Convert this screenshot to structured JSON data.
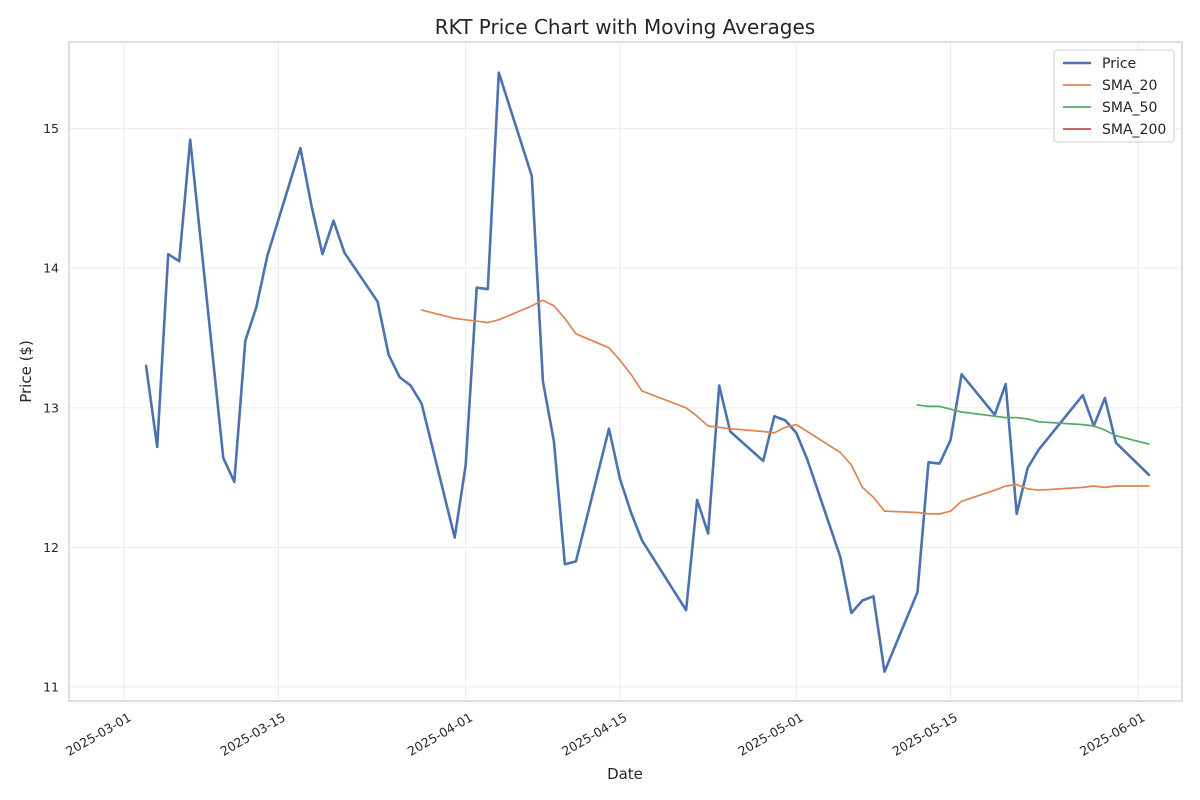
{
  "chart_data": {
    "type": "line",
    "title": "RKT Price Chart with Moving Averages",
    "xlabel": "Date",
    "ylabel": "Price ($)",
    "xlim": [
      "2025-02-24",
      "2025-06-05"
    ],
    "ylim": [
      10.9,
      15.62
    ],
    "y_ticks": [
      11,
      12,
      13,
      14,
      15
    ],
    "x_ticks": [
      "2025-03-01",
      "2025-03-15",
      "2025-04-01",
      "2025-04-15",
      "2025-05-01",
      "2025-05-15",
      "2025-06-01"
    ],
    "grid": true,
    "legend_position": "top-right",
    "series": [
      {
        "name": "Price",
        "color": "#4c72b0",
        "x": [
          "2025-03-03",
          "2025-03-04",
          "2025-03-05",
          "2025-03-06",
          "2025-03-07",
          "2025-03-10",
          "2025-03-11",
          "2025-03-12",
          "2025-03-13",
          "2025-03-14",
          "2025-03-17",
          "2025-03-18",
          "2025-03-19",
          "2025-03-20",
          "2025-03-21",
          "2025-03-24",
          "2025-03-25",
          "2025-03-26",
          "2025-03-27",
          "2025-03-28",
          "2025-03-31",
          "2025-04-01",
          "2025-04-02",
          "2025-04-03",
          "2025-04-04",
          "2025-04-07",
          "2025-04-08",
          "2025-04-09",
          "2025-04-10",
          "2025-04-11",
          "2025-04-14",
          "2025-04-15",
          "2025-04-16",
          "2025-04-17",
          "2025-04-21",
          "2025-04-22",
          "2025-04-23",
          "2025-04-24",
          "2025-04-25",
          "2025-04-28",
          "2025-04-29",
          "2025-04-30",
          "2025-05-01",
          "2025-05-02",
          "2025-05-05",
          "2025-05-06",
          "2025-05-07",
          "2025-05-08",
          "2025-05-09",
          "2025-05-12",
          "2025-05-13",
          "2025-05-14",
          "2025-05-15",
          "2025-05-16",
          "2025-05-19",
          "2025-05-20",
          "2025-05-21",
          "2025-05-22",
          "2025-05-23",
          "2025-05-27",
          "2025-05-28",
          "2025-05-29",
          "2025-05-30",
          "2025-06-02"
        ],
        "values": [
          13.3,
          12.72,
          14.1,
          14.05,
          14.92,
          12.64,
          12.47,
          13.48,
          13.72,
          14.09,
          14.86,
          14.45,
          14.1,
          14.34,
          14.11,
          13.76,
          13.38,
          13.22,
          13.16,
          13.03,
          12.07,
          12.59,
          13.86,
          13.85,
          15.4,
          14.66,
          13.19,
          12.76,
          11.88,
          11.9,
          12.85,
          12.49,
          12.25,
          12.05,
          11.55,
          12.34,
          12.1,
          13.16,
          12.83,
          12.62,
          12.94,
          12.91,
          12.82,
          12.63,
          11.93,
          11.53,
          11.62,
          11.65,
          11.11,
          11.68,
          12.61,
          12.6,
          12.77,
          13.24,
          12.95,
          13.17,
          12.24,
          12.57,
          12.7,
          13.09,
          12.87,
          13.07,
          12.75,
          12.52
        ]
      },
      {
        "name": "SMA_20",
        "color": "#dd8452",
        "x": [
          "2025-03-28",
          "2025-03-31",
          "2025-04-01",
          "2025-04-02",
          "2025-04-03",
          "2025-04-04",
          "2025-04-07",
          "2025-04-08",
          "2025-04-09",
          "2025-04-10",
          "2025-04-11",
          "2025-04-14",
          "2025-04-15",
          "2025-04-16",
          "2025-04-17",
          "2025-04-21",
          "2025-04-22",
          "2025-04-23",
          "2025-04-24",
          "2025-04-25",
          "2025-04-28",
          "2025-04-29",
          "2025-04-30",
          "2025-05-01",
          "2025-05-02",
          "2025-05-05",
          "2025-05-06",
          "2025-05-07",
          "2025-05-08",
          "2025-05-09",
          "2025-05-12",
          "2025-05-13",
          "2025-05-14",
          "2025-05-15",
          "2025-05-16",
          "2025-05-19",
          "2025-05-20",
          "2025-05-21",
          "2025-05-22",
          "2025-05-23",
          "2025-05-27",
          "2025-05-28",
          "2025-05-29",
          "2025-05-30",
          "2025-06-02"
        ],
        "values": [
          13.7,
          13.64,
          13.63,
          13.62,
          13.61,
          13.63,
          13.73,
          13.77,
          13.73,
          13.64,
          13.53,
          13.43,
          13.34,
          13.24,
          13.12,
          13.0,
          12.94,
          12.87,
          12.86,
          12.85,
          12.83,
          12.82,
          12.86,
          12.88,
          12.83,
          12.68,
          12.59,
          12.43,
          12.36,
          12.26,
          12.25,
          12.24,
          12.24,
          12.26,
          12.33,
          12.41,
          12.44,
          12.45,
          12.42,
          12.41,
          12.43,
          12.44,
          12.43,
          12.44,
          12.44
        ]
      },
      {
        "name": "SMA_50",
        "color": "#55a868",
        "x": [
          "2025-05-12",
          "2025-05-13",
          "2025-05-14",
          "2025-05-15",
          "2025-05-16",
          "2025-05-19",
          "2025-05-20",
          "2025-05-21",
          "2025-05-22",
          "2025-05-23",
          "2025-05-27",
          "2025-05-28",
          "2025-05-29",
          "2025-05-30",
          "2025-06-02"
        ],
        "values": [
          13.02,
          13.01,
          13.01,
          12.99,
          12.97,
          12.94,
          12.93,
          12.93,
          12.92,
          12.9,
          12.88,
          12.87,
          12.84,
          12.8,
          12.74
        ]
      },
      {
        "name": "SMA_200",
        "color": "#c44e52",
        "x": [],
        "values": []
      }
    ]
  }
}
